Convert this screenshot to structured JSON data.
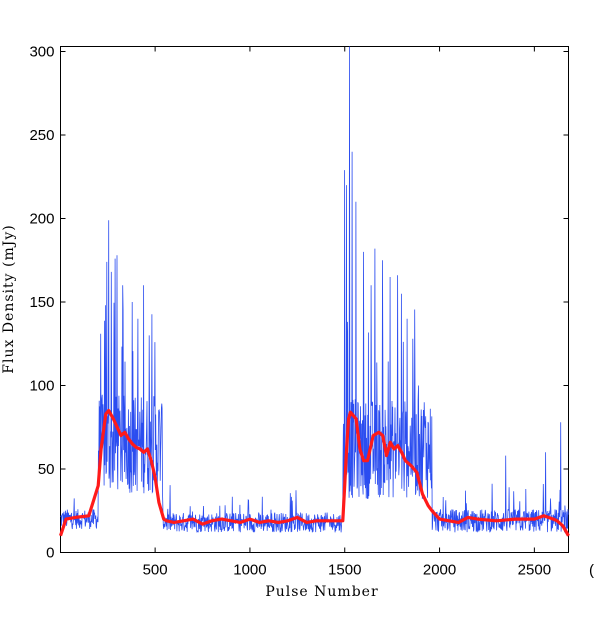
{
  "chart_data": {
    "type": "line",
    "title": "",
    "xlabel": "Pulse Number",
    "ylabel": "Flux Density (mJy)",
    "xlim": [
      1,
      2680
    ],
    "ylim": [
      0,
      303
    ],
    "x_ticks": [
      500,
      1000,
      1500,
      2000,
      2500
    ],
    "y_ticks": [
      0,
      50,
      100,
      150,
      200,
      250,
      300
    ],
    "grid": false,
    "legend": "none",
    "colors": {
      "raw": "#2b4df0",
      "smoothed": "#ff1a1a"
    },
    "series": [
      {
        "color": "#2b4df0",
        "style": "thin",
        "baseline_segments": [
          {
            "x0": 1,
            "x1": 200,
            "mean": 20,
            "noise": 6
          },
          {
            "x0": 560,
            "x1": 1490,
            "mean": 18,
            "noise": 6
          },
          {
            "x0": 1960,
            "x1": 2680,
            "mean": 19,
            "noise": 7
          }
        ],
        "burst_segments": [
          {
            "x0": 200,
            "x1": 540,
            "mean": 65,
            "noise": 30
          },
          {
            "x0": 1490,
            "x1": 1960,
            "mean": 62,
            "noise": 30
          }
        ],
        "peaks": [
          {
            "x": 240,
            "y": 148
          },
          {
            "x": 245,
            "y": 174
          },
          {
            "x": 255,
            "y": 199
          },
          {
            "x": 270,
            "y": 168
          },
          {
            "x": 290,
            "y": 176
          },
          {
            "x": 300,
            "y": 178
          },
          {
            "x": 330,
            "y": 160
          },
          {
            "x": 380,
            "y": 150
          },
          {
            "x": 410,
            "y": 140
          },
          {
            "x": 440,
            "y": 160
          },
          {
            "x": 470,
            "y": 130
          },
          {
            "x": 500,
            "y": 126
          },
          {
            "x": 1500,
            "y": 229
          },
          {
            "x": 1510,
            "y": 220
          },
          {
            "x": 1525,
            "y": 303
          },
          {
            "x": 1540,
            "y": 240
          },
          {
            "x": 1560,
            "y": 210
          },
          {
            "x": 1600,
            "y": 180
          },
          {
            "x": 1640,
            "y": 160
          },
          {
            "x": 1660,
            "y": 182
          },
          {
            "x": 1700,
            "y": 175
          },
          {
            "x": 1740,
            "y": 165
          },
          {
            "x": 1780,
            "y": 166
          },
          {
            "x": 1800,
            "y": 155
          },
          {
            "x": 1830,
            "y": 140
          },
          {
            "x": 1860,
            "y": 128
          },
          {
            "x": 1890,
            "y": 100
          },
          {
            "x": 1920,
            "y": 90
          },
          {
            "x": 2640,
            "y": 78
          },
          {
            "x": 2560,
            "y": 60
          },
          {
            "x": 2350,
            "y": 58
          }
        ]
      },
      {
        "color": "#ff1a1a",
        "style": "thick",
        "x": [
          1,
          30,
          80,
          150,
          200,
          215,
          240,
          255,
          280,
          300,
          320,
          340,
          360,
          380,
          400,
          420,
          440,
          460,
          480,
          500,
          520,
          545,
          560,
          600,
          650,
          700,
          750,
          800,
          850,
          900,
          950,
          1000,
          1050,
          1100,
          1150,
          1200,
          1250,
          1300,
          1350,
          1400,
          1450,
          1490,
          1500,
          1510,
          1520,
          1530,
          1560,
          1580,
          1600,
          1620,
          1650,
          1680,
          1700,
          1720,
          1740,
          1760,
          1780,
          1800,
          1820,
          1850,
          1880,
          1910,
          1940,
          1960,
          2000,
          2050,
          2100,
          2150,
          2200,
          2300,
          2400,
          2500,
          2550,
          2600,
          2620,
          2650,
          2680
        ],
        "y": [
          10,
          20,
          21,
          22,
          40,
          62,
          83,
          85,
          80,
          75,
          70,
          72,
          68,
          65,
          63,
          62,
          60,
          62,
          55,
          45,
          30,
          20,
          19,
          18,
          19,
          20,
          17,
          19,
          20,
          19,
          18,
          20,
          18,
          19,
          18,
          19,
          21,
          18,
          19,
          19,
          19,
          19,
          40,
          62,
          80,
          84,
          80,
          62,
          55,
          55,
          70,
          72,
          70,
          58,
          66,
          62,
          64,
          60,
          55,
          52,
          48,
          35,
          28,
          25,
          20,
          19,
          18,
          21,
          20,
          19,
          20,
          20,
          22,
          20,
          19,
          16,
          10
        ]
      }
    ]
  },
  "stray_text": "("
}
